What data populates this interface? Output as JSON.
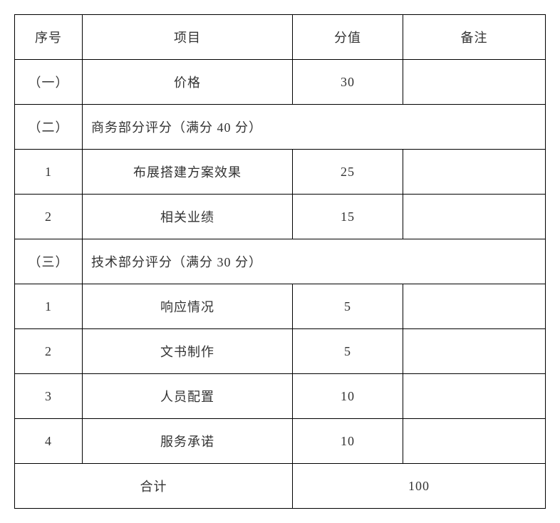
{
  "table": {
    "headers": {
      "index": "序号",
      "item": "项目",
      "score": "分值",
      "remark": "备注"
    },
    "rows": [
      {
        "index": "（一）",
        "item": "价格",
        "score": "30",
        "remark": ""
      },
      {
        "type": "section",
        "index": "（二）",
        "title": "商务部分评分（满分 40 分）"
      },
      {
        "index": "1",
        "item": "布展搭建方案效果",
        "score": "25",
        "remark": ""
      },
      {
        "index": "2",
        "item": "相关业绩",
        "score": "15",
        "remark": ""
      },
      {
        "type": "section",
        "index": "（三）",
        "title": "技术部分评分（满分 30 分）"
      },
      {
        "index": "1",
        "item": "响应情况",
        "score": "5",
        "remark": ""
      },
      {
        "index": "2",
        "item": "文书制作",
        "score": "5",
        "remark": ""
      },
      {
        "index": "3",
        "item": "人员配置",
        "score": "10",
        "remark": ""
      },
      {
        "index": "4",
        "item": "服务承诺",
        "score": "10",
        "remark": ""
      }
    ],
    "total": {
      "label": "合计",
      "value": "100"
    },
    "styling": {
      "border_color": "#000000",
      "background_color": "#ffffff",
      "text_color": "#333333",
      "font_size": 18,
      "border_width": 1.5,
      "col_widths": {
        "index": 95,
        "item": 295,
        "score": 155,
        "remark": 200
      }
    }
  }
}
